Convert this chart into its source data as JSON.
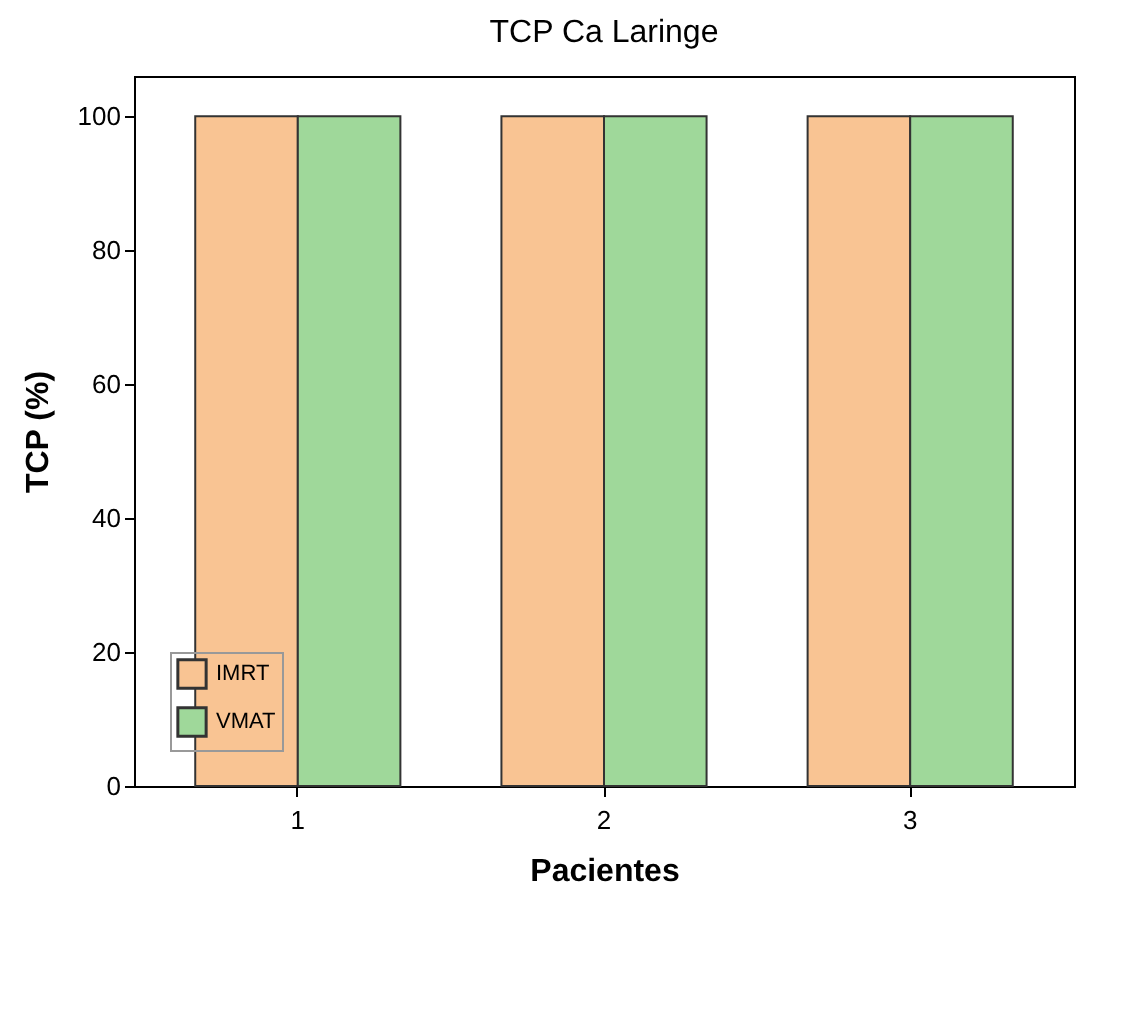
{
  "chart_data": {
    "type": "bar",
    "title": "TCP Ca Laringe",
    "xlabel": "Pacientes",
    "ylabel": "TCP (%)",
    "categories": [
      "1",
      "2",
      "3"
    ],
    "series": [
      {
        "name": "IMRT",
        "color": "#f9c493",
        "values": [
          100,
          100,
          100
        ]
      },
      {
        "name": "VMAT",
        "color": "#9fd89a",
        "values": [
          100,
          100,
          100
        ]
      }
    ],
    "ylim": [
      0,
      106
    ],
    "yticks": [
      0,
      20,
      40,
      60,
      80,
      100
    ],
    "grid": false,
    "legend": "bottom left"
  }
}
